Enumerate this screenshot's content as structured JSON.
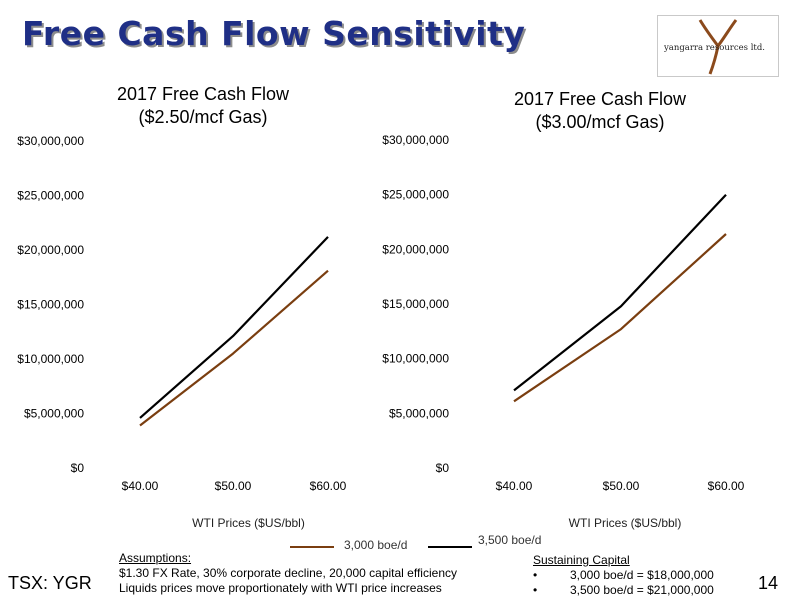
{
  "slide": {
    "title": "Free Cash Flow Sensitivity",
    "logo_text": "yangarra resources ltd.",
    "ticker": "TSX: YGR",
    "page_number": "14"
  },
  "colors": {
    "title": "#1f2f86",
    "series_3000": "#7a3e10",
    "series_3500": "#000000"
  },
  "legend": [
    {
      "name": "3,000 boe/d",
      "color": "#7a3e10"
    },
    {
      "name": "3,500 boe/d",
      "color": "#000000"
    }
  ],
  "assumptions": {
    "heading": "Assumptions:",
    "line1": "$1.30 FX Rate, 30% corporate decline, 20,000 capital efficiency",
    "line2": "Liquids prices move proportionately with WTI price increases"
  },
  "sustaining_capital": {
    "heading": "Sustaining Capital",
    "bullet": "•",
    "items": [
      "3,000 boe/d = $18,000,000",
      "3,500 boe/d = $21,000,000"
    ]
  },
  "chart_data": [
    {
      "type": "line",
      "title": [
        "2017 Free Cash Flow",
        "($2.50/mcf Gas)"
      ],
      "xlabel": "WTI Prices ($US/bbl)",
      "ylabel": "",
      "categories": [
        "$40.00",
        "$50.00",
        "$60.00"
      ],
      "yticks": [
        "$0",
        "$5,000,000",
        "$10,000,000",
        "$15,000,000",
        "$20,000,000",
        "$25,000,000",
        "$30,000,000"
      ],
      "ylim": [
        0,
        30000000
      ],
      "grid": false,
      "series": [
        {
          "name": "3,000 boe/d",
          "values": [
            3900000,
            10500000,
            18100000
          ]
        },
        {
          "name": "3,500 boe/d",
          "values": [
            4600000,
            12100000,
            21200000
          ]
        }
      ]
    },
    {
      "type": "line",
      "title": [
        "2017 Free Cash Flow",
        "($3.00/mcf Gas)"
      ],
      "xlabel": "WTI Prices ($US/bbl)",
      "ylabel": "",
      "categories": [
        "$40.00",
        "$50.00",
        "$60.00"
      ],
      "yticks": [
        "$0",
        "$5,000,000",
        "$10,000,000",
        "$15,000,000",
        "$20,000,000",
        "$25,000,000",
        "$30,000,000"
      ],
      "ylim": [
        0,
        30000000
      ],
      "grid": false,
      "series": [
        {
          "name": "3,000 boe/d",
          "values": [
            6100000,
            12700000,
            21400000
          ]
        },
        {
          "name": "3,500 boe/d",
          "values": [
            7100000,
            14800000,
            25000000
          ]
        }
      ]
    }
  ]
}
